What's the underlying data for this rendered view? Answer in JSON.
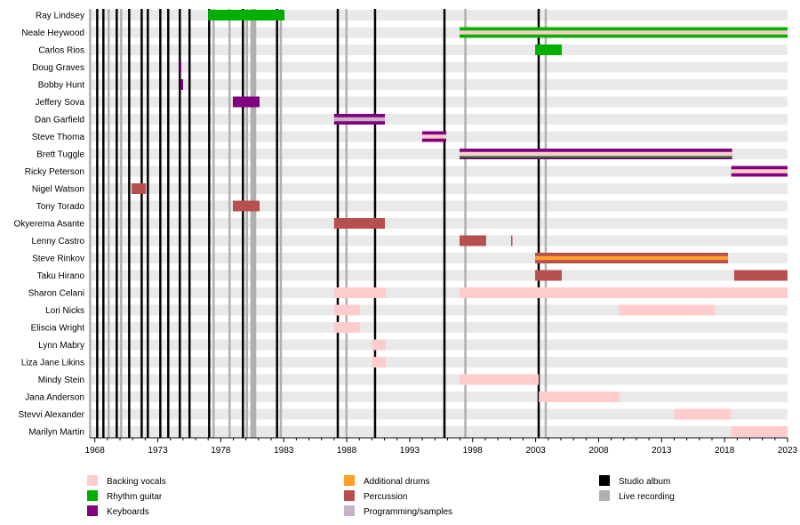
{
  "chart_data": {
    "type": "timeline",
    "x_range": [
      1967.6,
      2023
    ],
    "x_ticks": [
      "1968",
      "1973",
      "1978",
      "1983",
      "1988",
      "1993",
      "1998",
      "2003",
      "2008",
      "2013",
      "2018",
      "2023"
    ],
    "x_tick_values": [
      1968,
      1973,
      1978,
      1983,
      1988,
      1993,
      1998,
      2003,
      2008,
      2013,
      2018,
      2023
    ],
    "roles": {
      "backing_vocals": {
        "label": "Backing vocals",
        "color": "#ffcccc"
      },
      "rhythm_guitar": {
        "label": "Rhythm guitar",
        "color": "#00b000"
      },
      "keyboards": {
        "label": "Keyboards",
        "color": "#800080"
      },
      "additional_drums": {
        "label": "Additional drums",
        "color": "#ff9f2a"
      },
      "percussion": {
        "label": "Percussion",
        "color": "#b5504f"
      },
      "programming": {
        "label": "Programming/samples",
        "color": "#c8b2c8"
      },
      "studio_album": {
        "label": "Studio album",
        "color": "#000000"
      },
      "live_recording": {
        "label": "Live recording",
        "color": "#b0b0b0"
      }
    },
    "legend": [
      [
        "backing_vocals",
        "rhythm_guitar",
        "keyboards"
      ],
      [
        "additional_drums",
        "percussion",
        "programming"
      ],
      [
        "studio_album",
        "live_recording"
      ]
    ],
    "members": [
      {
        "name": "Ray Lindsey",
        "periods": [
          {
            "start": 1977.0,
            "end": 1983.06,
            "roles": [
              "rhythm_guitar"
            ]
          }
        ]
      },
      {
        "name": "Neale Heywood",
        "periods": [
          {
            "start": 1996.96,
            "end": 2023,
            "roles": [
              "rhythm_guitar",
              "backing_vocals"
            ]
          }
        ]
      },
      {
        "name": "Carlos Rios",
        "periods": [
          {
            "start": 2002.96,
            "end": 2005.07,
            "roles": [
              "rhythm_guitar"
            ]
          }
        ]
      },
      {
        "name": "Doug Graves",
        "periods": [
          {
            "start": 1974.73,
            "end": 1974.87,
            "roles": [
              "keyboards"
            ]
          }
        ]
      },
      {
        "name": "Bobby Hunt",
        "periods": [
          {
            "start": 1974.8,
            "end": 1975.01,
            "roles": [
              "keyboards"
            ]
          }
        ]
      },
      {
        "name": "Jeffery Sova",
        "periods": [
          {
            "start": 1978.96,
            "end": 1981.08,
            "roles": [
              "keyboards"
            ]
          }
        ]
      },
      {
        "name": "Dan Garfield",
        "periods": [
          {
            "start": 1987.0,
            "end": 1991.03,
            "roles": [
              "keyboards",
              "programming"
            ]
          }
        ]
      },
      {
        "name": "Steve Thoma",
        "periods": [
          {
            "start": 1993.99,
            "end": 1995.9,
            "roles": [
              "keyboards",
              "backing_vocals"
            ]
          }
        ]
      },
      {
        "name": "Brett Tuggle",
        "periods": [
          {
            "start": 1996.96,
            "end": 2018.6,
            "roles": [
              "keyboards",
              "backing_vocals",
              "rhythm_guitar"
            ]
          }
        ]
      },
      {
        "name": "Ricky Peterson",
        "periods": [
          {
            "start": 2018.53,
            "end": 2023,
            "roles": [
              "keyboards",
              "backing_vocals"
            ]
          }
        ]
      },
      {
        "name": "Nigel Watson",
        "periods": [
          {
            "start": 1970.92,
            "end": 1972.05,
            "roles": [
              "percussion"
            ]
          }
        ]
      },
      {
        "name": "Tony Torado",
        "periods": [
          {
            "start": 1978.96,
            "end": 1981.08,
            "roles": [
              "percussion"
            ]
          }
        ]
      },
      {
        "name": "Okyerema Asante",
        "periods": [
          {
            "start": 1987.0,
            "end": 1991.03,
            "roles": [
              "percussion"
            ]
          }
        ]
      },
      {
        "name": "Lenny Castro",
        "periods": [
          {
            "start": 1996.96,
            "end": 1999.07,
            "roles": [
              "percussion"
            ]
          },
          {
            "start": 2001.05,
            "end": 2001.12,
            "roles": [
              "percussion"
            ]
          }
        ]
      },
      {
        "name": "Steve Rinkov",
        "periods": [
          {
            "start": 2002.96,
            "end": 2018.27,
            "roles": [
              "percussion",
              "additional_drums"
            ]
          }
        ]
      },
      {
        "name": "Taku Hirano",
        "periods": [
          {
            "start": 2002.96,
            "end": 2005.07,
            "roles": [
              "percussion"
            ]
          },
          {
            "start": 2018.76,
            "end": 2023,
            "roles": [
              "percussion"
            ]
          }
        ]
      },
      {
        "name": "Sharon Celani",
        "periods": [
          {
            "start": 1987.0,
            "end": 1991.1,
            "roles": [
              "backing_vocals"
            ]
          },
          {
            "start": 1996.96,
            "end": 2023,
            "roles": [
              "backing_vocals"
            ]
          }
        ]
      },
      {
        "name": "Lori Nicks",
        "periods": [
          {
            "start": 1987.0,
            "end": 1989.05,
            "roles": [
              "backing_vocals"
            ]
          },
          {
            "start": 2009.62,
            "end": 2017.24,
            "roles": [
              "backing_vocals"
            ]
          }
        ]
      },
      {
        "name": "Eliscia Wright",
        "periods": [
          {
            "start": 1987.0,
            "end": 1989.05,
            "roles": [
              "backing_vocals"
            ]
          }
        ]
      },
      {
        "name": "Lynn Mabry",
        "periods": [
          {
            "start": 1990.0,
            "end": 1991.1,
            "roles": [
              "backing_vocals"
            ]
          }
        ]
      },
      {
        "name": "Liza Jane Likins",
        "periods": [
          {
            "start": 1990.0,
            "end": 1991.1,
            "roles": [
              "backing_vocals"
            ]
          }
        ]
      },
      {
        "name": "Mindy Stein",
        "periods": [
          {
            "start": 1996.96,
            "end": 2003.25,
            "roles": [
              "backing_vocals"
            ]
          }
        ]
      },
      {
        "name": "Jana Anderson",
        "periods": [
          {
            "start": 2003.25,
            "end": 2009.62,
            "roles": [
              "backing_vocals"
            ]
          }
        ]
      },
      {
        "name": "Stevvi Alexander",
        "periods": [
          {
            "start": 2014.0,
            "end": 2018.5,
            "roles": [
              "backing_vocals"
            ]
          }
        ]
      },
      {
        "name": "Marilyn Martin",
        "periods": [
          {
            "start": 2018.5,
            "end": 2023,
            "roles": [
              "backing_vocals"
            ]
          }
        ]
      }
    ],
    "studio_albums": [
      1968.19,
      1968.68,
      1969.74,
      1970.73,
      1971.72,
      1972.21,
      1973.2,
      1973.83,
      1974.75,
      1975.52,
      1977.08,
      1979.76,
      1982.47,
      1987.29,
      1990.25,
      1995.76,
      2003.24
    ],
    "live_recordings": [
      1967.62,
      1969.1,
      1970.09,
      1977.43,
      1978.7,
      1980.07,
      1980.44,
      1980.6,
      1980.73,
      1982.77,
      1987.98,
      1997.42,
      2003.8
    ]
  }
}
